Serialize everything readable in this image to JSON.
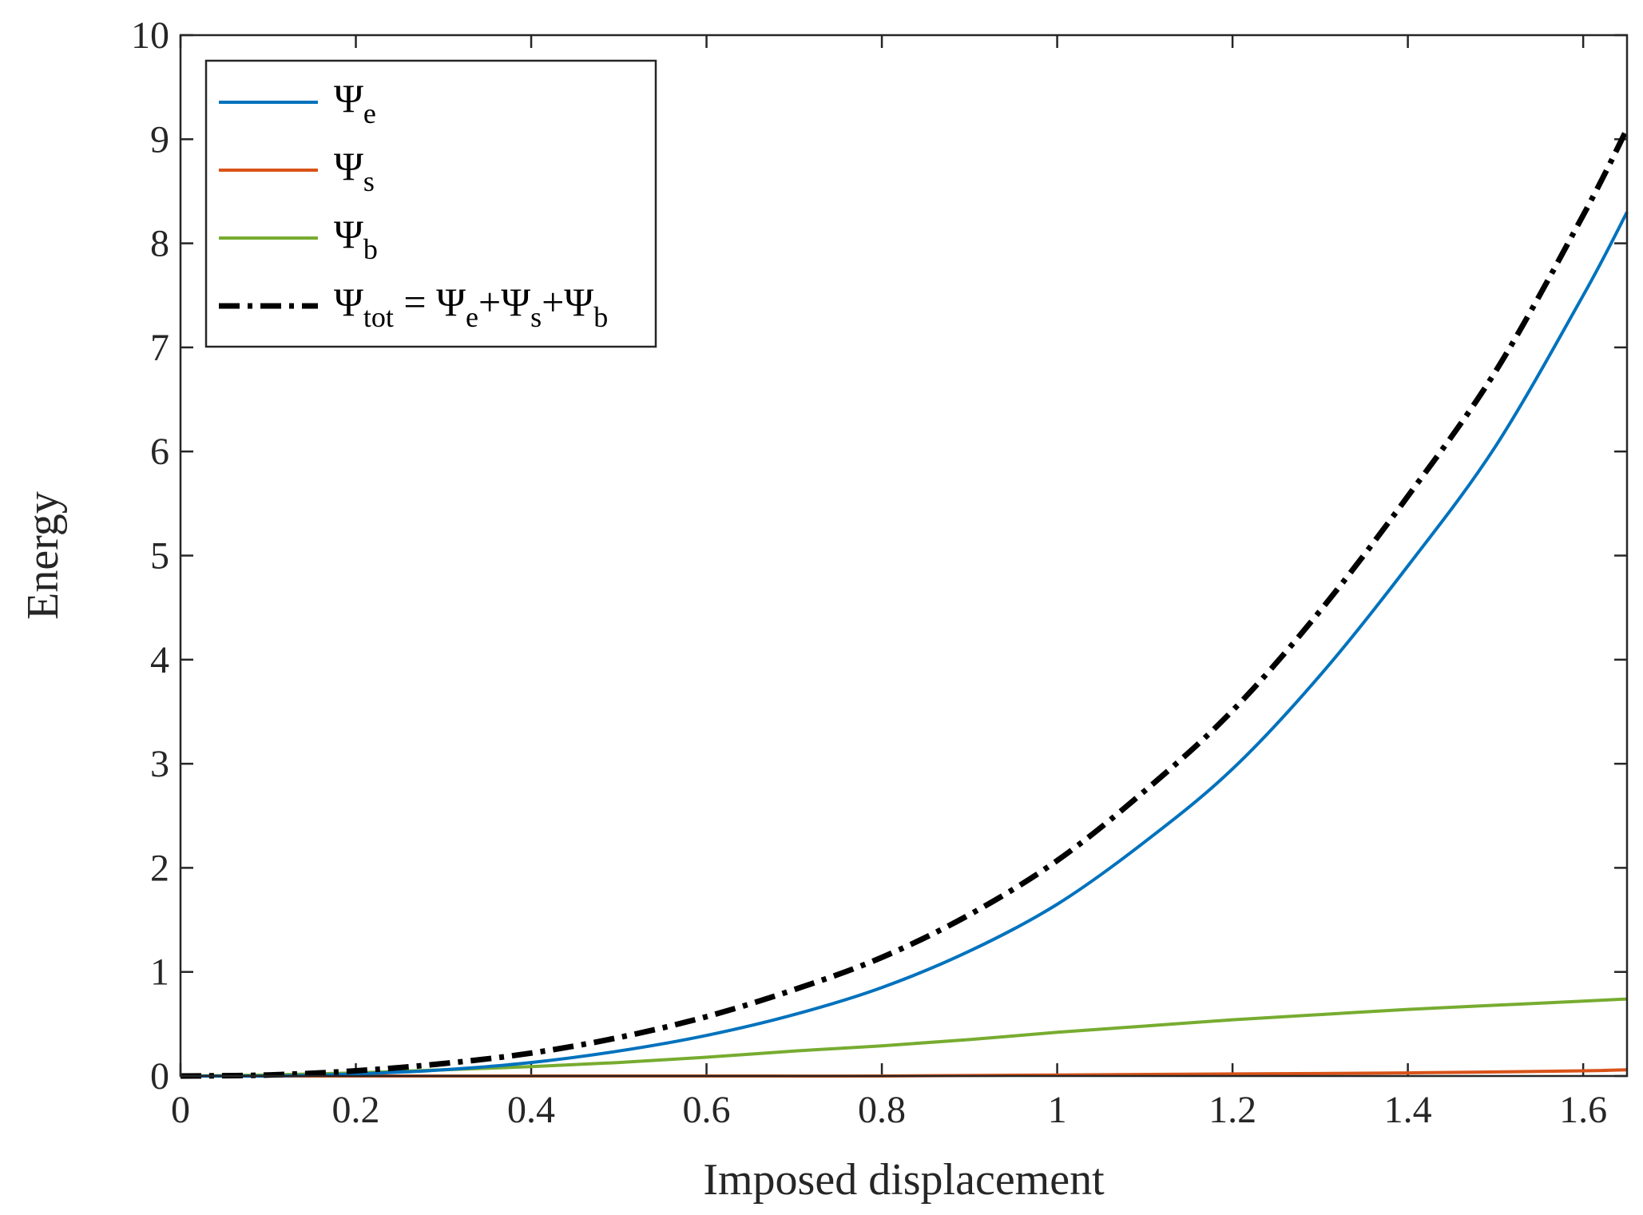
{
  "chart_data": {
    "type": "line",
    "title": "",
    "xlabel": "Imposed displacement",
    "ylabel": "Energy",
    "xlim": [
      0,
      1.65
    ],
    "ylim": [
      0,
      10
    ],
    "xticks": [
      0,
      0.2,
      0.4,
      0.6,
      0.8,
      1,
      1.2,
      1.4,
      1.6
    ],
    "xtick_labels": [
      "0",
      "0.2",
      "0.4",
      "0.6",
      "0.8",
      "1",
      "1.2",
      "1.4",
      "1.6"
    ],
    "yticks": [
      0,
      1,
      2,
      3,
      4,
      5,
      6,
      7,
      8,
      9,
      10
    ],
    "ytick_labels": [
      "0",
      "1",
      "2",
      "3",
      "4",
      "5",
      "6",
      "7",
      "8",
      "9",
      "10"
    ],
    "grid": false,
    "legend_position": "top-left",
    "series": [
      {
        "name": "Ψe",
        "symbol": "Ψ",
        "sub": "e",
        "color": "#0072BD",
        "style": "solid",
        "x": [
          0,
          0.1,
          0.2,
          0.3,
          0.4,
          0.5,
          0.6,
          0.7,
          0.8,
          0.9,
          1.0,
          1.1,
          1.2,
          1.3,
          1.4,
          1.5,
          1.6,
          1.65
        ],
        "y": [
          0,
          0.0,
          0.02,
          0.06,
          0.13,
          0.24,
          0.39,
          0.59,
          0.85,
          1.2,
          1.65,
          2.25,
          2.95,
          3.85,
          4.9,
          6.05,
          7.5,
          8.3
        ]
      },
      {
        "name": "Ψs",
        "symbol": "Ψ",
        "sub": "s",
        "color": "#D95319",
        "style": "solid",
        "x": [
          0,
          0.2,
          0.4,
          0.6,
          0.8,
          1.0,
          1.2,
          1.4,
          1.6,
          1.65
        ],
        "y": [
          0,
          0.0,
          0.0,
          0.0,
          0.0,
          0.01,
          0.02,
          0.03,
          0.05,
          0.06
        ]
      },
      {
        "name": "Ψb",
        "symbol": "Ψ",
        "sub": "b",
        "color": "#77AC30",
        "style": "solid",
        "x": [
          0,
          0.1,
          0.2,
          0.3,
          0.4,
          0.5,
          0.6,
          0.7,
          0.8,
          0.9,
          1.0,
          1.1,
          1.2,
          1.3,
          1.4,
          1.5,
          1.6,
          1.65
        ],
        "y": [
          0,
          0.01,
          0.03,
          0.06,
          0.09,
          0.13,
          0.18,
          0.24,
          0.29,
          0.35,
          0.42,
          0.48,
          0.54,
          0.59,
          0.64,
          0.68,
          0.72,
          0.74
        ]
      },
      {
        "name": "Ψtot = Ψe+Ψs+Ψb",
        "color": "#000000",
        "style": "dashdot",
        "x": [
          0,
          0.1,
          0.2,
          0.3,
          0.4,
          0.5,
          0.6,
          0.7,
          0.8,
          0.9,
          1.0,
          1.1,
          1.2,
          1.3,
          1.4,
          1.5,
          1.6,
          1.65
        ],
        "y": [
          0,
          0.01,
          0.05,
          0.12,
          0.22,
          0.37,
          0.57,
          0.83,
          1.14,
          1.55,
          2.07,
          2.74,
          3.51,
          4.47,
          5.57,
          6.77,
          8.27,
          9.1
        ]
      }
    ],
    "legend_total": {
      "symbol": "Ψ",
      "sub": "tot",
      "eq": " = ",
      "t1": "Ψ",
      "s1": "e",
      "plus1": "+",
      "t2": "Ψ",
      "s2": "s",
      "plus2": "+",
      "t3": "Ψ",
      "s3": "b"
    }
  }
}
